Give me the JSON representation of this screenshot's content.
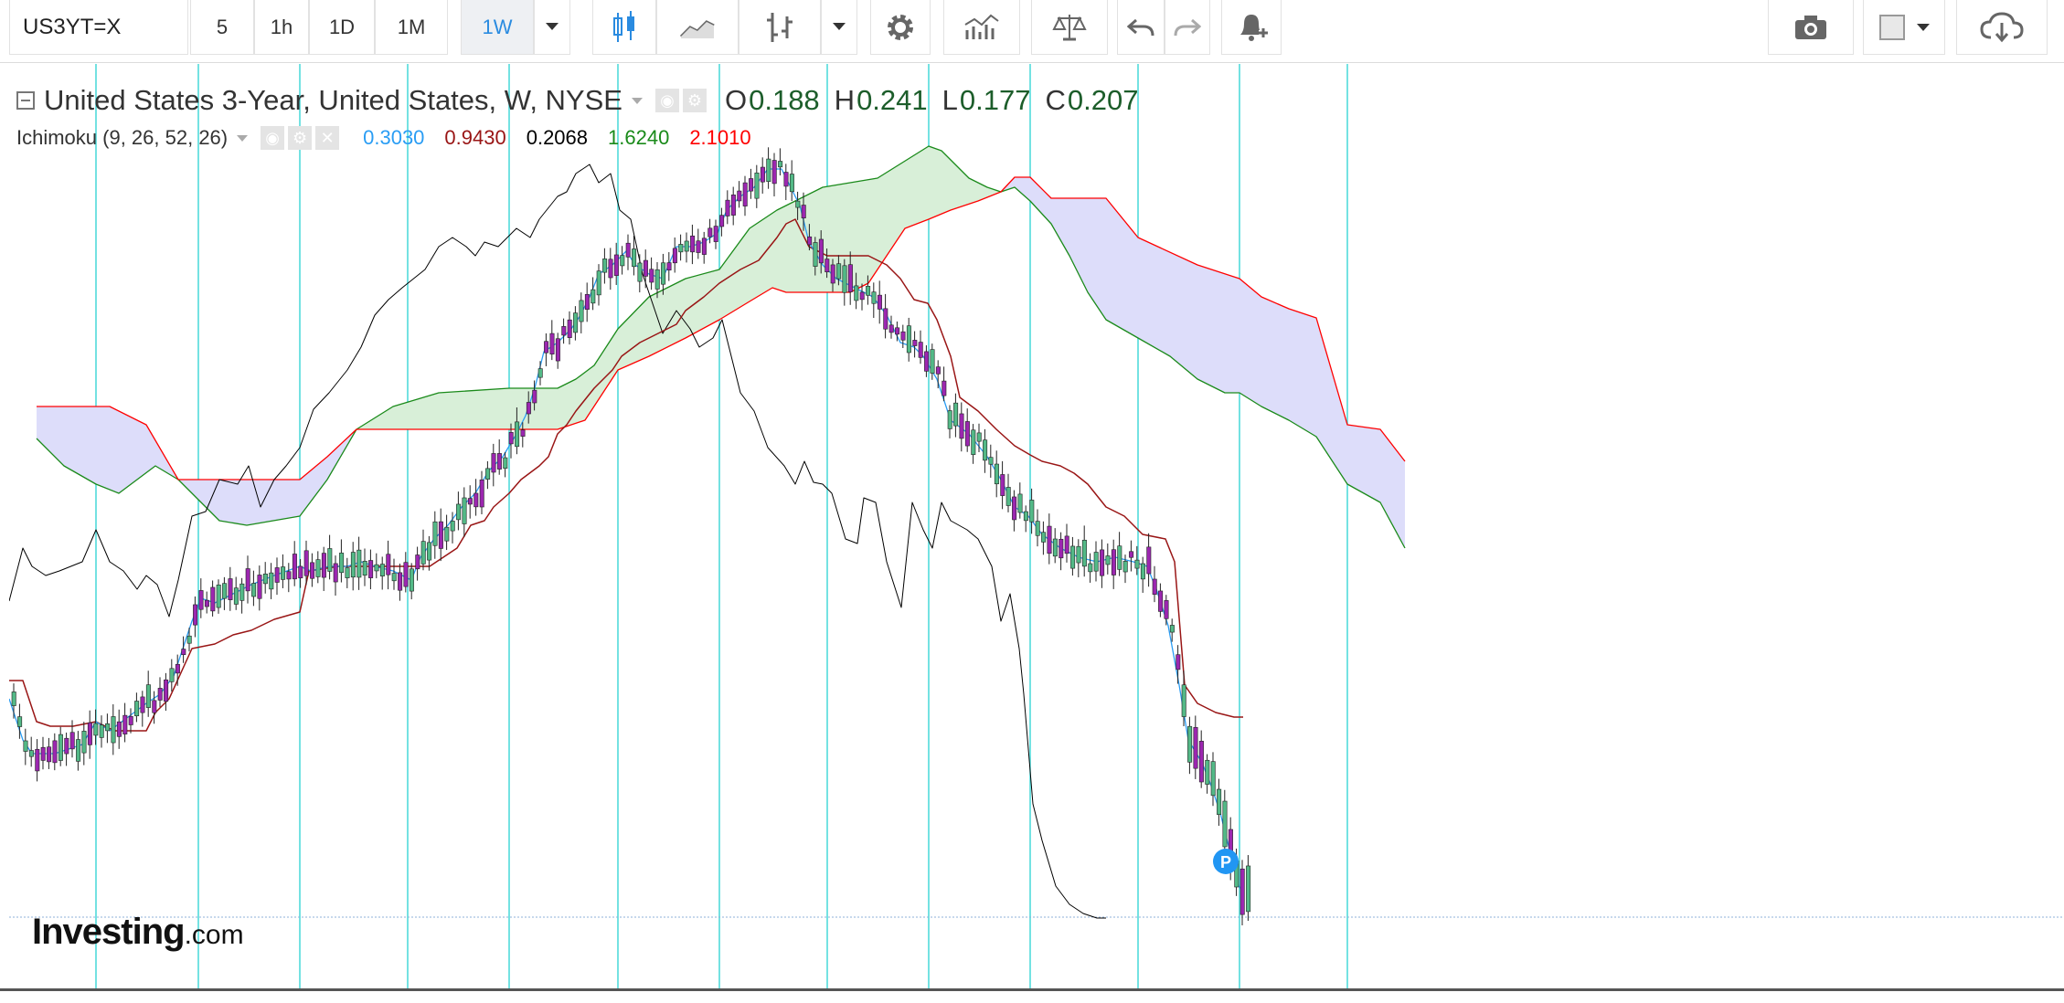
{
  "toolbar": {
    "symbol": "US3YT=X",
    "intervals": [
      "5",
      "1h",
      "1D",
      "1M",
      "1W"
    ],
    "active_interval": "1W"
  },
  "legend": {
    "title": "United States 3-Year, United States, W, NYSE",
    "open_label": "O",
    "open_value": "0.188",
    "high_label": "H",
    "high_value": "0.241",
    "low_label": "L",
    "low_value": "0.177",
    "close_label": "C",
    "close_value": "0.207"
  },
  "indicator": {
    "name": "Ichimoku (9, 26, 52, 26)",
    "values": [
      {
        "text": "0.3030",
        "color": "#2a9df4"
      },
      {
        "text": "0.9430",
        "color": "#991515"
      },
      {
        "text": "0.2068",
        "color": "#000000"
      },
      {
        "text": "1.6240",
        "color": "#1a8a1a"
      },
      {
        "text": "2.1010",
        "color": "#ff0000"
      }
    ]
  },
  "colors": {
    "bull_candle": "#53b987",
    "bear_candle": "#9c27b0",
    "conversion_line": "#2a9df4",
    "base_line": "#991515",
    "lagging_span": "#000000",
    "lead_a": "#1a8a1a",
    "lead_b": "#ff0000",
    "cloud_bull": "#d8efd8",
    "cloud_bear": "#ddddfa",
    "grid_line": "#27d3d3",
    "marker": "#2196f3"
  },
  "marker_label": "P",
  "logo": {
    "brand": "Investing",
    "suffix": ".com"
  }
}
